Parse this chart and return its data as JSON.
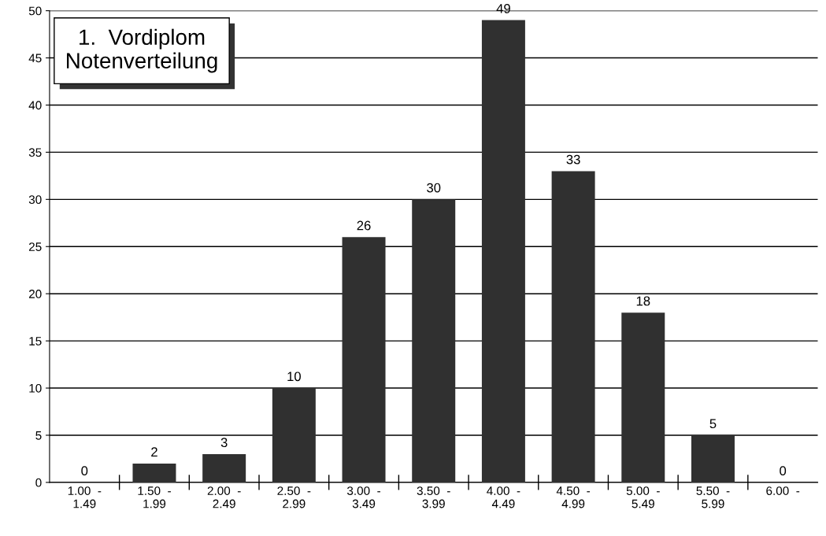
{
  "chart_data": {
    "type": "bar",
    "title": "1.  Vordiplom\nNotenverteilung",
    "categories": [
      "1.00  -\n1.49",
      "1.50  -\n1.99",
      "2.00  -\n2.49",
      "2.50  -\n2.99",
      "3.00  -\n3.49",
      "3.50  -\n3.99",
      "4.00  -\n4.49",
      "4.50  -\n4.99",
      "5.00  -\n5.49",
      "5.50  -\n5.99",
      "6.00  -"
    ],
    "values": [
      0,
      2,
      3,
      10,
      26,
      30,
      49,
      33,
      18,
      5,
      0
    ],
    "color": "#303030",
    "ylim": [
      0,
      50
    ],
    "yticks": [
      0,
      5,
      10,
      15,
      20,
      25,
      30,
      35,
      40,
      45,
      50
    ],
    "grid": "y",
    "data_labels": true,
    "legend": false
  }
}
